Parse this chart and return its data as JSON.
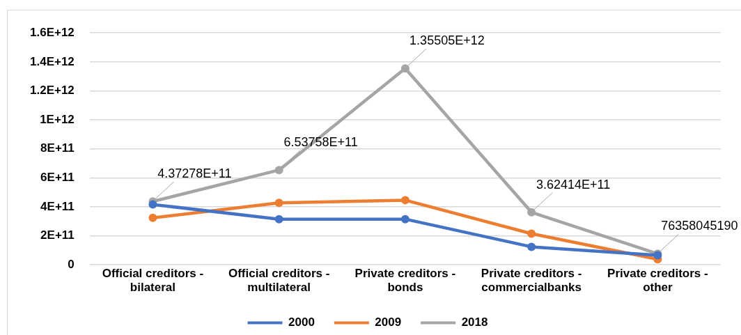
{
  "chart_data": {
    "type": "line",
    "categories": [
      "Official creditors - bilateral",
      "Official creditors - multilateral",
      "Private creditors - bonds",
      "Private creditors - commercialbanks",
      "Private creditors - other"
    ],
    "series": [
      {
        "name": "2000",
        "color": "#4472c4",
        "values": [
          416000000000,
          315000000000,
          315000000000,
          124000000000,
          66000000000
        ]
      },
      {
        "name": "2009",
        "color": "#ed7d31",
        "values": [
          324000000000,
          427000000000,
          446000000000,
          215000000000,
          38000000000
        ]
      },
      {
        "name": "2018",
        "color": "#a5a5a5",
        "values": [
          437278000000,
          653758000000,
          1355050000000,
          362414000000,
          76358045190
        ],
        "value_labels": [
          "4.37278E+11",
          "6.53758E+11",
          "1.35505E+12",
          "3.62414E+11",
          "76358045190"
        ]
      }
    ],
    "ylim": [
      0,
      1600000000000
    ],
    "yticks": [
      {
        "value": 0,
        "label": "0"
      },
      {
        "value": 200000000000,
        "label": "2E+11"
      },
      {
        "value": 400000000000,
        "label": "4E+11"
      },
      {
        "value": 600000000000,
        "label": "6E+11"
      },
      {
        "value": 800000000000,
        "label": "8E+11"
      },
      {
        "value": 1000000000000,
        "label": "1E+12"
      },
      {
        "value": 1200000000000,
        "label": "1.2E+12"
      },
      {
        "value": 1400000000000,
        "label": "1.4E+12"
      },
      {
        "value": 1600000000000,
        "label": "1.6E+12"
      }
    ],
    "grid": "y",
    "legend": "bottom",
    "marker": "circle",
    "line_style": "solid"
  }
}
